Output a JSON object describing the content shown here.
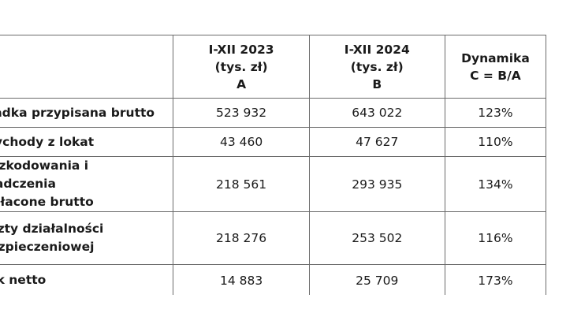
{
  "table": {
    "headers": {
      "label_col": "",
      "col_a": {
        "line1": "I-XII 2023",
        "line2": "(tys. zł)",
        "line3": "A"
      },
      "col_b": {
        "line1": "I-XII 2024",
        "line2": "(tys. zł)",
        "line3": "B"
      },
      "col_c": {
        "line1": "Dynamika",
        "line2": "C = B/A"
      }
    },
    "rows": [
      {
        "label": "Składka przypisana brutto",
        "a": "523 932",
        "b": "643 022",
        "c": "123%"
      },
      {
        "label": "Przychody z lokat",
        "a": "43 460",
        "b": "47 627",
        "c": "110%"
      },
      {
        "label1": "Odszkodowania i świadczenia",
        "label2": "wypłacone brutto",
        "a": "218 561",
        "b": "293 935",
        "c": "134%"
      },
      {
        "label1": "Koszty działalności",
        "label2": "ubezpieczeniowej",
        "a": "218 276",
        "b": "253 502",
        "c": "116%"
      },
      {
        "label": "Zysk netto",
        "a": "14 883",
        "b": "25 709",
        "c": "173%"
      }
    ]
  }
}
